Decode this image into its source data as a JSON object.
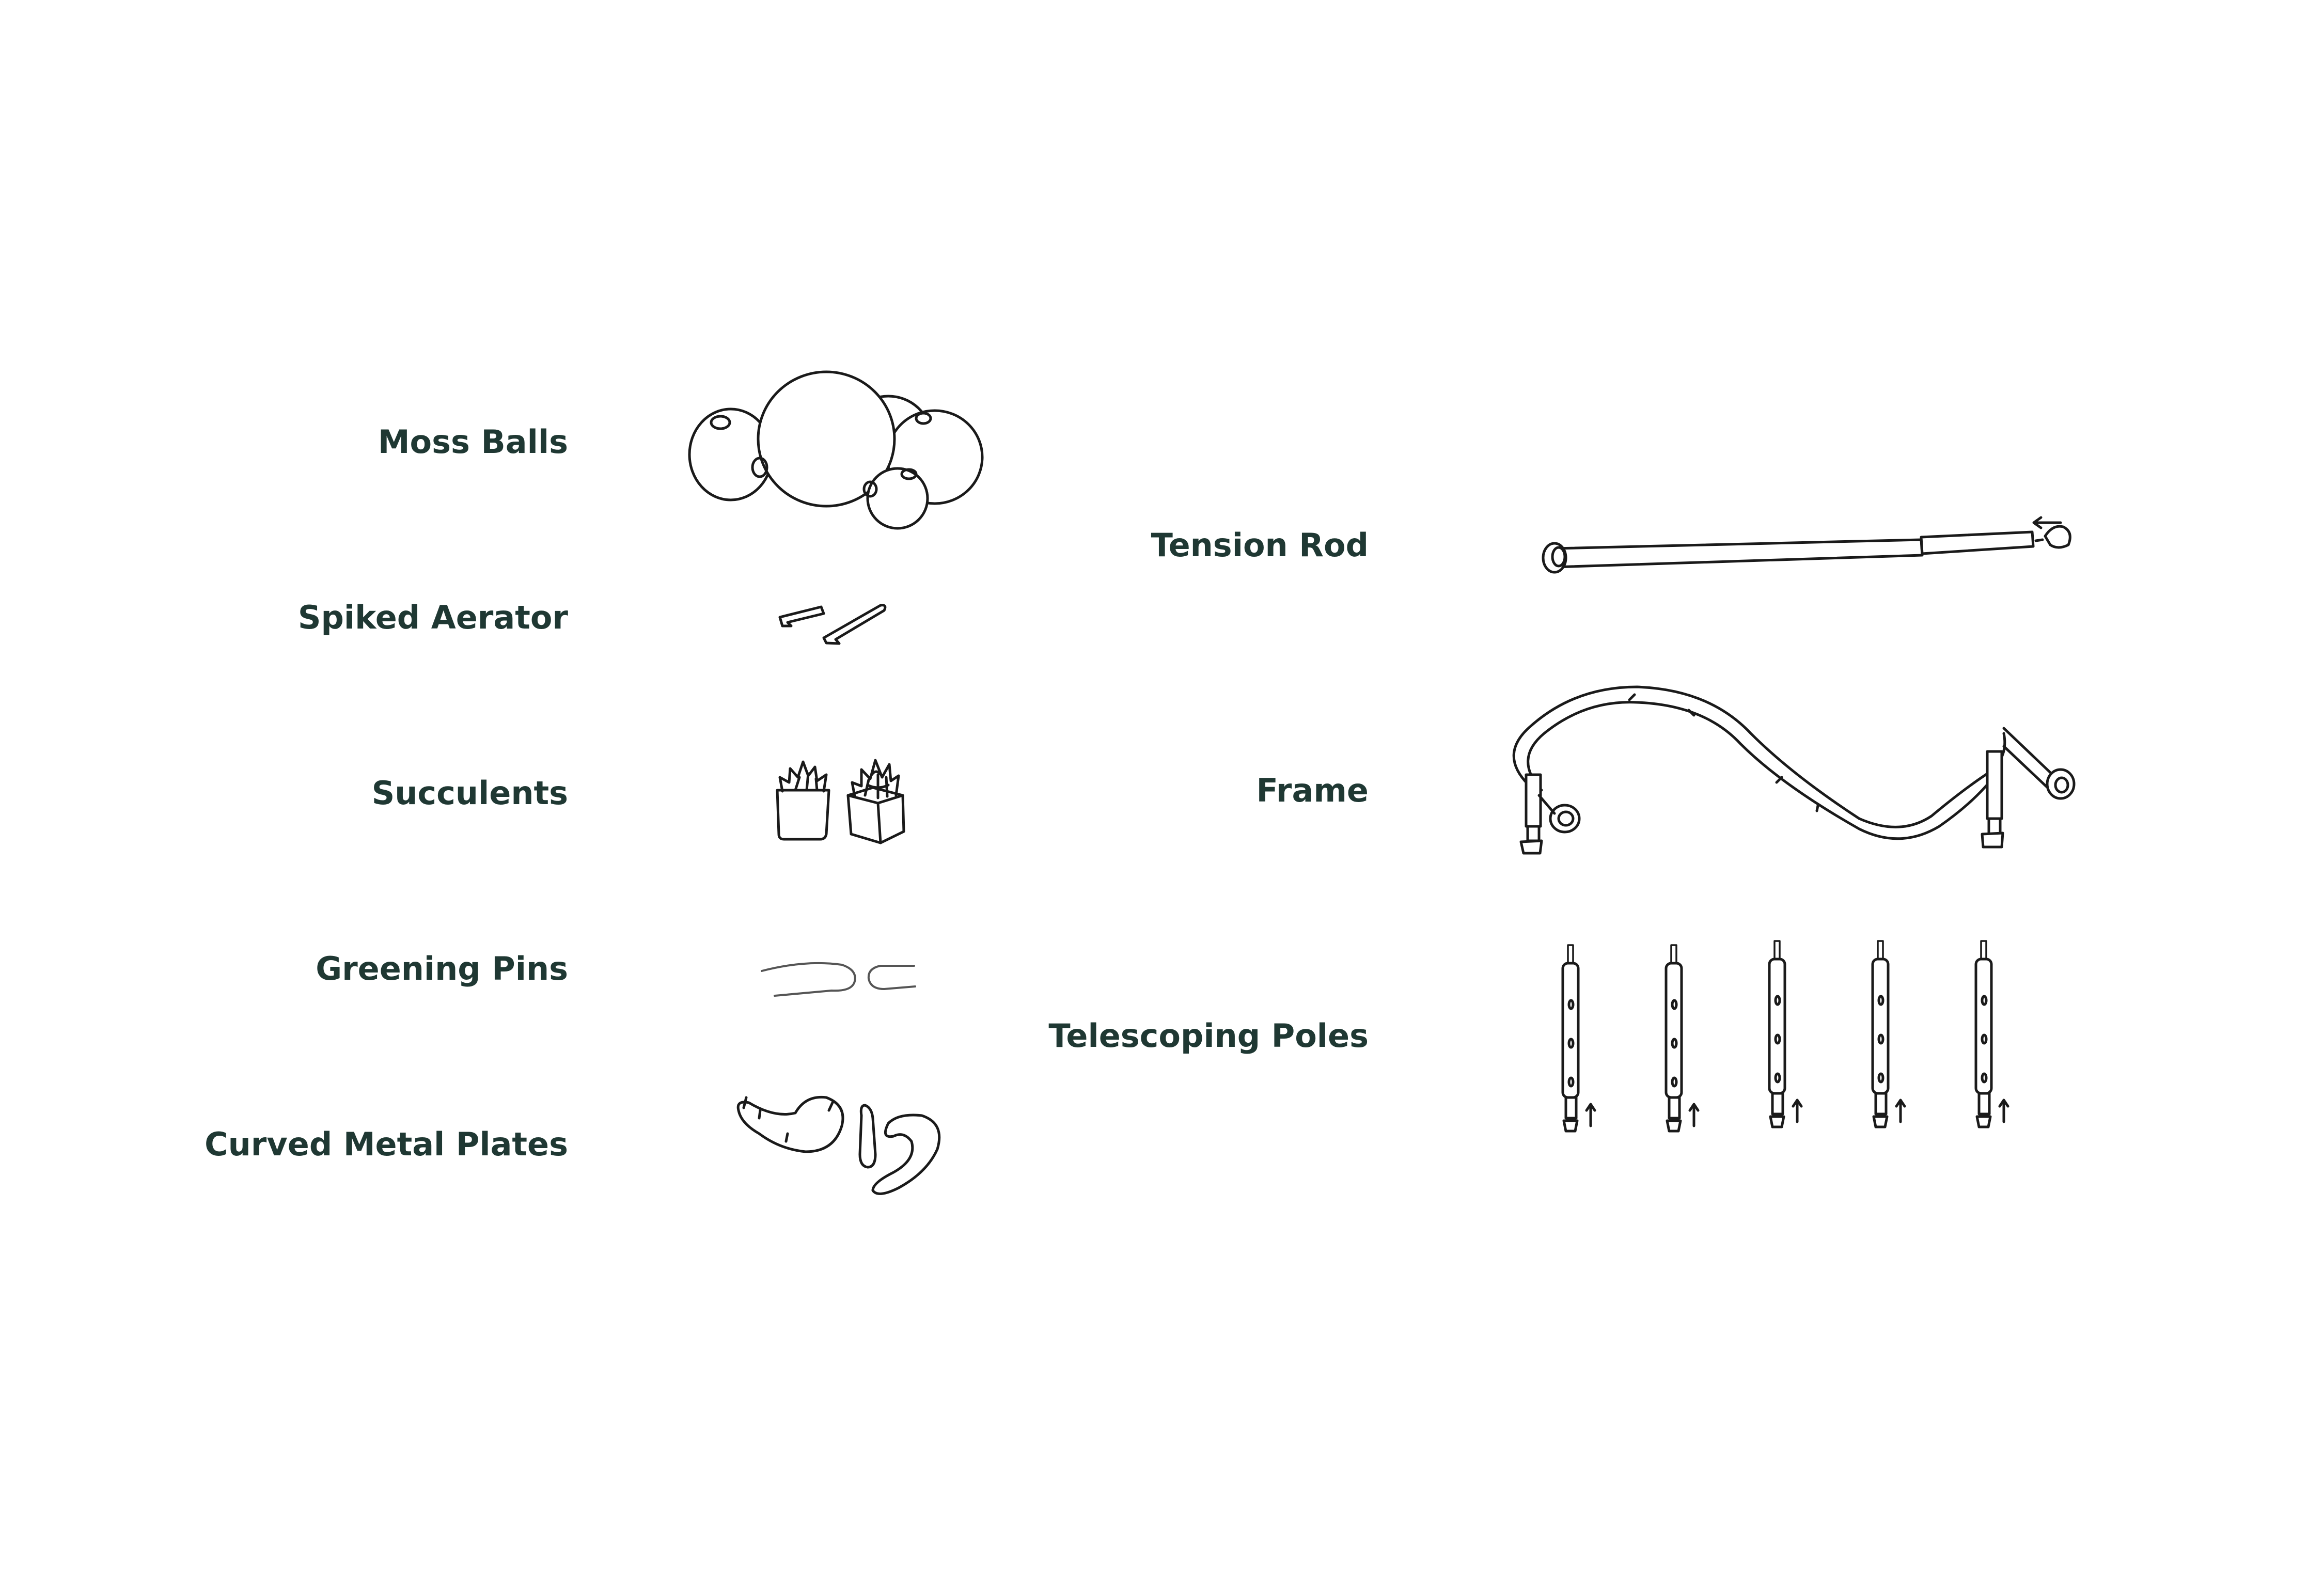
{
  "parts": {
    "left": [
      {
        "label": "Moss Balls",
        "icon": "moss-balls-icon"
      },
      {
        "label": "Spiked Aerator",
        "icon": "spiked-aerator-icon"
      },
      {
        "label": "Succulents",
        "icon": "succulents-icon"
      },
      {
        "label": "Greening Pins",
        "icon": "greening-pins-icon"
      },
      {
        "label": "Curved Metal Plates",
        "icon": "curved-metal-plates-icon"
      }
    ],
    "right": [
      {
        "label": "Tension Rod",
        "icon": "tension-rod-icon"
      },
      {
        "label": "Frame",
        "icon": "frame-icon"
      },
      {
        "label": "Telescoping Poles",
        "icon": "telescoping-poles-icon"
      }
    ]
  },
  "colors": {
    "label": "#1f3833",
    "line": "#1a1a1a",
    "background": "#ffffff"
  }
}
